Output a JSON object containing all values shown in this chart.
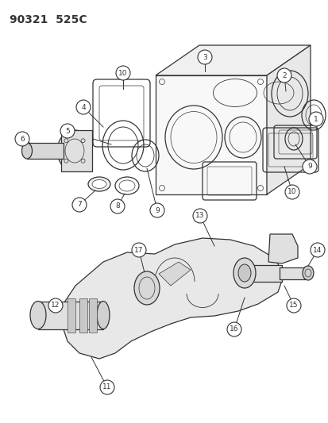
{
  "title": "90321  525C",
  "bg_color": "#ffffff",
  "line_color": "#333333",
  "title_fontsize": 10,
  "fig_width": 4.14,
  "fig_height": 5.33,
  "dpi": 100
}
